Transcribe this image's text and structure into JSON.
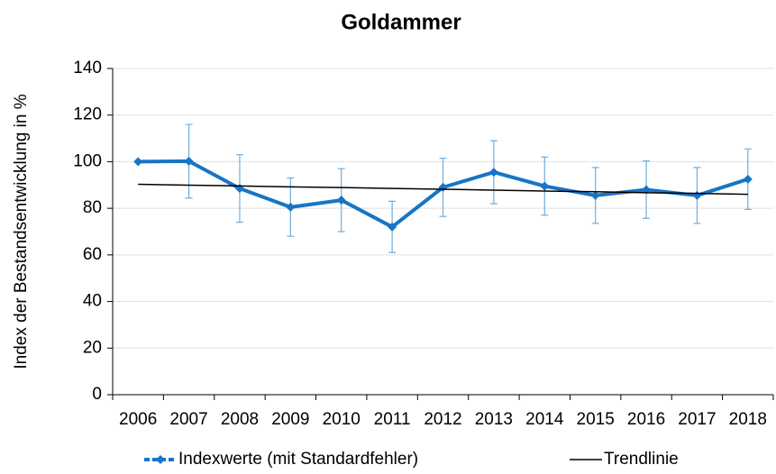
{
  "chart_data": {
    "type": "line",
    "title": "Goldammer",
    "ylabel": "Index der Bestandsentwicklung in %",
    "categories": [
      "2006",
      "2007",
      "2008",
      "2009",
      "2010",
      "2011",
      "2012",
      "2013",
      "2014",
      "2015",
      "2016",
      "2017",
      "2018"
    ],
    "series": [
      {
        "name": "Indexwerte (mit Standardfehler)",
        "color": "#1874c6",
        "values": [
          100,
          100.2,
          88.5,
          80.5,
          83.5,
          72,
          89,
          95.5,
          89.5,
          85.5,
          88,
          85.5,
          92.5
        ],
        "errors": [
          null,
          15.8,
          14.5,
          12.5,
          13.5,
          11,
          12.5,
          13.5,
          12.5,
          12,
          12.3,
          12,
          13
        ]
      },
      {
        "name": "Trendlinie",
        "color": "#000000",
        "values": [
          90.3,
          89.9,
          89.6,
          89.2,
          88.9,
          88.5,
          88.2,
          87.8,
          87.4,
          87.1,
          86.7,
          86.4,
          86.0
        ]
      }
    ],
    "ylim": [
      0,
      140
    ],
    "yticks": [
      0,
      20,
      40,
      60,
      80,
      100,
      120,
      140
    ],
    "grid": true
  }
}
